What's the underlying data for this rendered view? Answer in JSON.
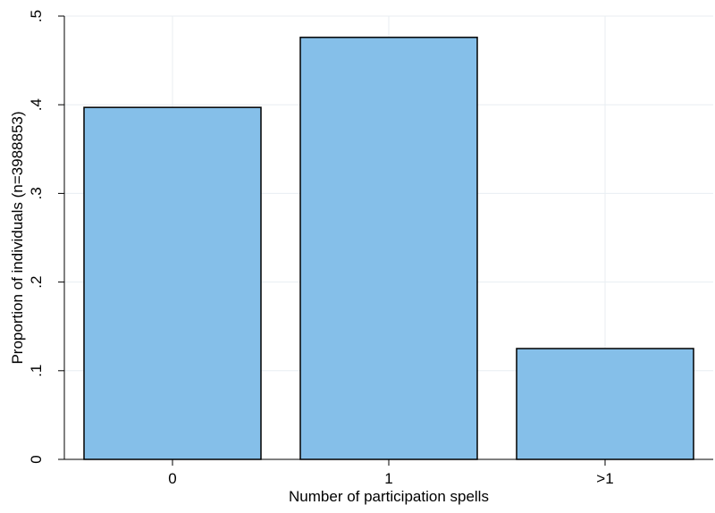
{
  "chart_data": {
    "type": "bar",
    "categories": [
      "0",
      "1",
      ">1"
    ],
    "values": [
      0.397,
      0.476,
      0.125
    ],
    "xlabel": "Number of participation spells",
    "ylabel": "Proportion of individuals (n=3988853)",
    "ylim": [
      0,
      0.5
    ],
    "yticks": [
      0,
      0.1,
      0.2,
      0.3,
      0.4,
      0.5
    ],
    "ytick_labels": [
      "0",
      ".1",
      ".2",
      ".3",
      ".4",
      ".5"
    ],
    "grid": true,
    "colors": {
      "bar_fill": "#85bfe9",
      "bar_stroke": "#000000",
      "grid": "#e8eef2"
    }
  }
}
